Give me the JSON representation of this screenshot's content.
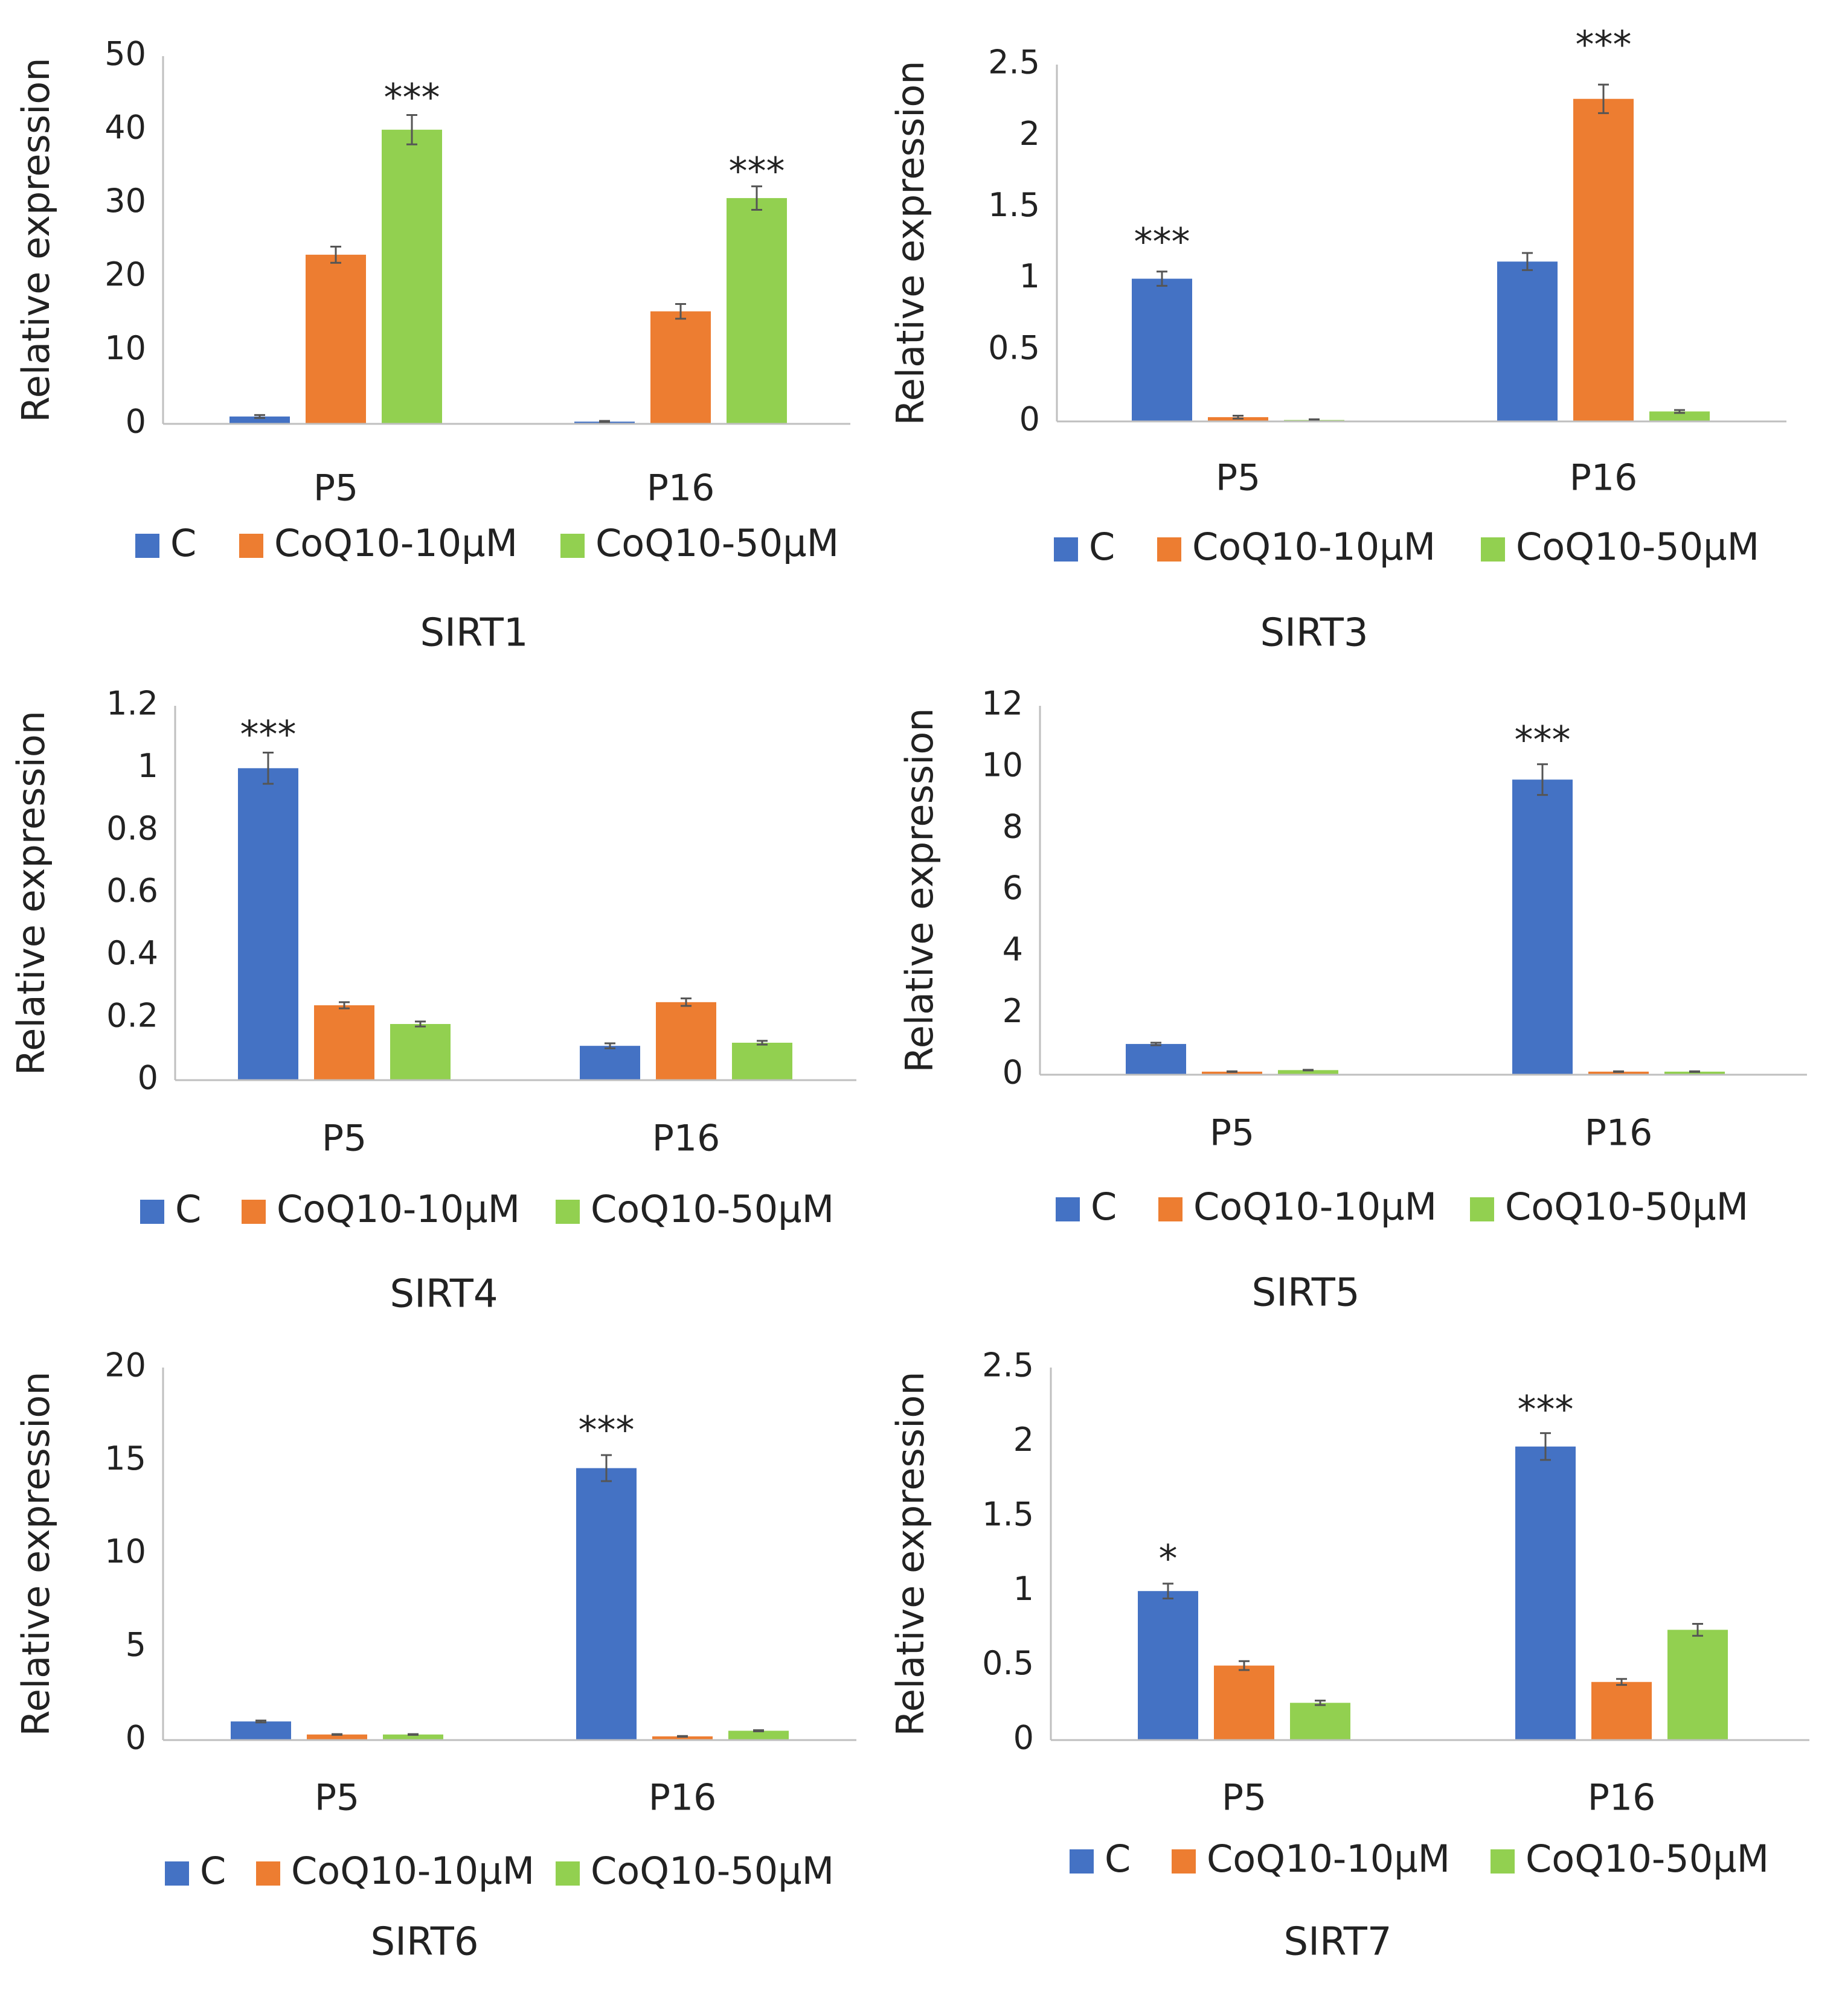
{
  "colors": {
    "C": "#4472c4",
    "CoQ10-10uM": "#ed7d31",
    "CoQ10-50uM": "#92d050",
    "axis": "#bfbfbf",
    "error": "#555555"
  },
  "chart_data": [
    {
      "type": "bar",
      "title": "SIRT1",
      "ylabel": "Relative expression",
      "ylim": [
        0,
        50
      ],
      "yticks": [
        "0",
        "10",
        "20",
        "30",
        "40",
        "50"
      ],
      "categories": [
        "P5",
        "P16"
      ],
      "series": [
        {
          "name": "C",
          "values": [
            1,
            0.3
          ],
          "errors": [
            0.2,
            0.1
          ]
        },
        {
          "name": "CoQ10-10µM",
          "values": [
            23,
            15.3
          ],
          "errors": [
            1.1,
            1.0
          ]
        },
        {
          "name": "CoQ10-50µM",
          "values": [
            40,
            30.7
          ],
          "errors": [
            2.0,
            1.6
          ]
        }
      ],
      "annotations": [
        {
          "text": "***",
          "category": 0,
          "series": 2,
          "at": 44
        },
        {
          "text": "***",
          "category": 1,
          "series": 2,
          "at": 34
        }
      ],
      "legend": "bottom"
    },
    {
      "type": "bar",
      "title": "SIRT3",
      "ylabel": "Relative expression",
      "ylim": [
        0,
        2.5
      ],
      "yticks": [
        "0",
        "0.5",
        "1",
        "1.5",
        "2",
        "2.5"
      ],
      "categories": [
        "P5",
        "P16"
      ],
      "series": [
        {
          "name": "C",
          "values": [
            1.0,
            1.12
          ],
          "errors": [
            0.05,
            0.06
          ]
        },
        {
          "name": "CoQ10-10µM",
          "values": [
            0.03,
            2.26
          ],
          "errors": [
            0.01,
            0.1
          ]
        },
        {
          "name": "CoQ10-50µM",
          "values": [
            0.01,
            0.07
          ],
          "errors": [
            0.005,
            0.01
          ]
        }
      ],
      "annotations": [
        {
          "text": "***",
          "category": 0,
          "series": 0,
          "at": 1.24
        },
        {
          "text": "***",
          "category": 1,
          "series": 1,
          "at": 2.62
        }
      ],
      "legend": "bottom"
    },
    {
      "type": "bar",
      "title": "SIRT4",
      "ylabel": "Relative expression",
      "ylim": [
        0,
        1.2
      ],
      "yticks": [
        "0",
        "0.2",
        "0.4",
        "0.6",
        "0.8",
        "1",
        "1.2"
      ],
      "categories": [
        "P5",
        "P16"
      ],
      "series": [
        {
          "name": "C",
          "values": [
            1.0,
            0.11
          ],
          "errors": [
            0.05,
            0.008
          ]
        },
        {
          "name": "CoQ10-10µM",
          "values": [
            0.24,
            0.25
          ],
          "errors": [
            0.01,
            0.012
          ]
        },
        {
          "name": "CoQ10-50µM",
          "values": [
            0.18,
            0.12
          ],
          "errors": [
            0.008,
            0.006
          ]
        }
      ],
      "annotations": [
        {
          "text": "***",
          "category": 0,
          "series": 0,
          "at": 1.1
        }
      ],
      "legend": "bottom"
    },
    {
      "type": "bar",
      "title": "SIRT5",
      "ylabel": "Relative expression",
      "ylim": [
        0,
        12
      ],
      "yticks": [
        "0",
        "2",
        "4",
        "6",
        "8",
        "10",
        "12"
      ],
      "categories": [
        "P5",
        "P16"
      ],
      "series": [
        {
          "name": "C",
          "values": [
            1.0,
            9.6
          ],
          "errors": [
            0.04,
            0.5
          ]
        },
        {
          "name": "CoQ10-10µM",
          "values": [
            0.1,
            0.1
          ],
          "errors": [
            0.01,
            0.01
          ]
        },
        {
          "name": "CoQ10-50µM",
          "values": [
            0.15,
            0.1
          ],
          "errors": [
            0.01,
            0.01
          ]
        }
      ],
      "annotations": [
        {
          "text": "***",
          "category": 1,
          "series": 0,
          "at": 10.8
        }
      ],
      "legend": "bottom"
    },
    {
      "type": "bar",
      "title": "SIRT6",
      "ylabel": "Relative expression",
      "ylim": [
        0,
        20
      ],
      "yticks": [
        "0",
        "5",
        "10",
        "15",
        "20"
      ],
      "categories": [
        "P5",
        "P16"
      ],
      "series": [
        {
          "name": "C",
          "values": [
            1.0,
            14.6
          ],
          "errors": [
            0.05,
            0.7
          ]
        },
        {
          "name": "CoQ10-10µM",
          "values": [
            0.3,
            0.2
          ],
          "errors": [
            0.02,
            0.02
          ]
        },
        {
          "name": "CoQ10-50µM",
          "values": [
            0.3,
            0.5
          ],
          "errors": [
            0.02,
            0.03
          ]
        }
      ],
      "annotations": [
        {
          "text": "***",
          "category": 1,
          "series": 0,
          "at": 16.5
        }
      ],
      "legend": "bottom"
    },
    {
      "type": "bar",
      "title": "SIRT7",
      "ylabel": "Relative expression",
      "ylim": [
        0,
        2.5
      ],
      "yticks": [
        "0",
        "0.5",
        "1",
        "1.5",
        "2",
        "2.5"
      ],
      "categories": [
        "P5",
        "P16"
      ],
      "series": [
        {
          "name": "C",
          "values": [
            1.0,
            1.97
          ],
          "errors": [
            0.05,
            0.09
          ]
        },
        {
          "name": "CoQ10-10µM",
          "values": [
            0.5,
            0.39
          ],
          "errors": [
            0.03,
            0.02
          ]
        },
        {
          "name": "CoQ10-50µM",
          "values": [
            0.25,
            0.74
          ],
          "errors": [
            0.015,
            0.04
          ]
        }
      ],
      "annotations": [
        {
          "text": "*",
          "category": 0,
          "series": 0,
          "at": 1.2
        },
        {
          "text": "***",
          "category": 1,
          "series": 0,
          "at": 2.2
        }
      ],
      "legend": "bottom"
    }
  ]
}
